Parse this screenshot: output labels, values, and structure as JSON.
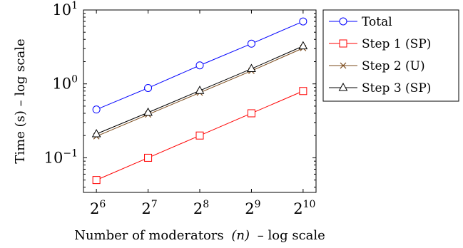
{
  "chart_data": {
    "type": "line",
    "xlabel_text": "Number of moderators",
    "xlabel_var": "(n)",
    "xlabel_suffix": "– log scale",
    "ylabel": "Time (s) – log scale",
    "x_scale": "log2",
    "y_scale": "log10",
    "x": [
      64,
      128,
      256,
      512,
      1024
    ],
    "xlim": [
      53.8,
      1218
    ],
    "ylim": [
      0.034,
      10
    ],
    "x_ticks": [
      {
        "value": 64,
        "base": "2",
        "exp": "6"
      },
      {
        "value": 128,
        "base": "2",
        "exp": "7"
      },
      {
        "value": 256,
        "base": "2",
        "exp": "8"
      },
      {
        "value": 512,
        "base": "2",
        "exp": "9"
      },
      {
        "value": 1024,
        "base": "2",
        "exp": "10"
      }
    ],
    "y_ticks": [
      {
        "value": 0.1,
        "base": "10",
        "exp": "−1"
      },
      {
        "value": 1,
        "base": "10",
        "exp": "0"
      },
      {
        "value": 10,
        "base": "10",
        "exp": "1"
      }
    ],
    "grid": false,
    "legend_position": "outside-right",
    "series": [
      {
        "name": "Total",
        "color": "#0000ff",
        "marker": "circle",
        "values": [
          0.45,
          0.88,
          1.78,
          3.5,
          7.0
        ]
      },
      {
        "name": "Step 1 (SP)",
        "color": "#ff0000",
        "marker": "square",
        "values": [
          0.05,
          0.1,
          0.2,
          0.4,
          0.8
        ]
      },
      {
        "name": "Step 2 (U)",
        "color": "#7a4a1a",
        "marker": "cross",
        "values": [
          0.195,
          0.385,
          0.76,
          1.5,
          3.05
        ]
      },
      {
        "name": "Step 3 (SP)",
        "color": "#000000",
        "marker": "triangle",
        "values": [
          0.21,
          0.41,
          0.81,
          1.6,
          3.25
        ]
      }
    ]
  }
}
